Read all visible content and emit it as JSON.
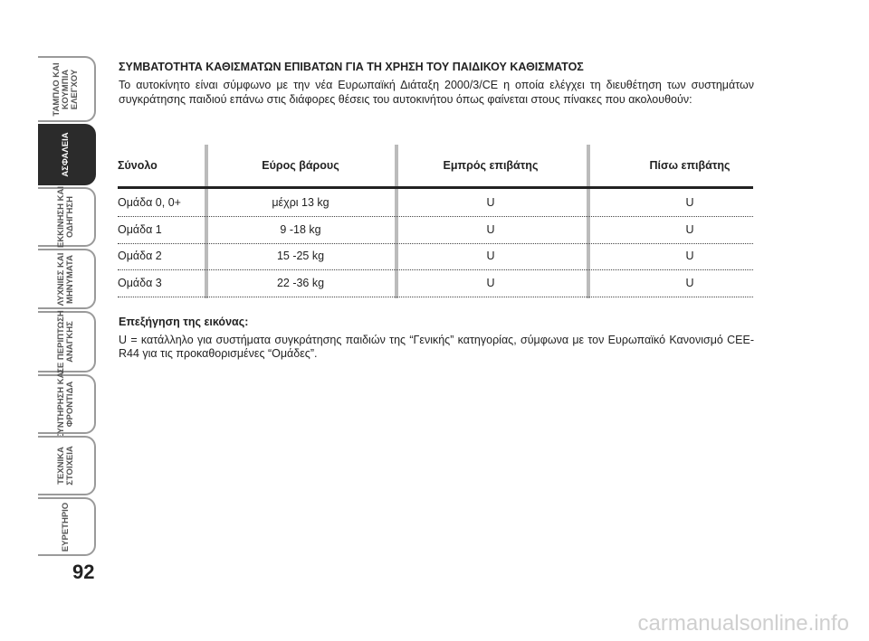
{
  "sidebar": {
    "tabs": [
      {
        "lines": [
          "ΤΑΜΠΛΟ ΚΑΙ",
          "ΚΟΥΜΠΙΑ",
          "ΕΛΕΓΧΟΥ"
        ]
      },
      {
        "lines": [
          "ΑΣΦΑΛΕΙΑ"
        ]
      },
      {
        "lines": [
          "ΕΚΚΙΝΗΣΗ ΚΑΙ",
          "ΟΔΗΓΗΣΗ"
        ]
      },
      {
        "lines": [
          "ΛΥΧΝΙΕΣ ΚΑΙ",
          "ΜΗΝΥΜΑΤΑ"
        ]
      },
      {
        "lines": [
          "ΣΕ ΠΕΡΙΠΤΩΣΗ",
          "ΑΝΑΓΚΗΣ"
        ]
      },
      {
        "lines": [
          "ΣΥΝΤΗΡΗΣΗ ΚΑΙ",
          "ΦΡΟΝΤΙΔΑ"
        ]
      },
      {
        "lines": [
          "ΤΕΧΝΙΚΑ",
          "ΣΤΟΙΧΕΙΑ"
        ]
      },
      {
        "lines": [
          "ΕΥΡΕΤΗΡΙΟ"
        ]
      }
    ],
    "active": 1
  },
  "page_number": "92",
  "title": "ΣΥΜΒΑΤΟΤΗΤΑ ΚΑΘΙΣΜΑΤΩΝ ΕΠΙΒΑΤΩΝ ΓΙΑ ΤΗ ΧΡΗΣΗ ΤΟΥ ΠΑΙΔΙΚΟΥ ΚΑΘΙΣΜΑΤΟΣ",
  "intro": "Το αυτοκίνητο είναι σύμφωνο με την νέα Ευρωπαϊκή Διάταξη 2000/3/CE η οποία ελέγχει τη διευθέτηση των συστημάτων συγκράτησης παιδιού επάνω στις διάφορες θέσεις του αυτοκινήτου όπως φαίνεται στους πίνακες που ακολουθούν:",
  "table": {
    "header": [
      "Σύνολο",
      "Εύρος βάρους",
      "Εμπρός επιβάτης",
      "Πίσω επιβάτης"
    ],
    "rows": [
      [
        "Ομάδα 0, 0+",
        "μέχρι 13 kg",
        "U",
        "U"
      ],
      [
        "Ομάδα 1",
        "9 -18 kg",
        "U",
        "U"
      ],
      [
        "Ομάδα 2",
        "15 -25 kg",
        "U",
        "U"
      ],
      [
        "Ομάδα 3",
        "22 -36 kg",
        "U",
        "U"
      ]
    ]
  },
  "legend_title": "Επεξήγηση της εικόνας:",
  "legend_text": "U = κατάλληλο για συστήματα συγκράτησης παιδιών της “Γενικής” κατηγορίας, σύμφωνα με τον Ευρωπαϊκό Κανονισμό CEE-R44 για τις προκαθορισμένες “Ομάδες”.",
  "watermark": "carmanualsonline.info"
}
